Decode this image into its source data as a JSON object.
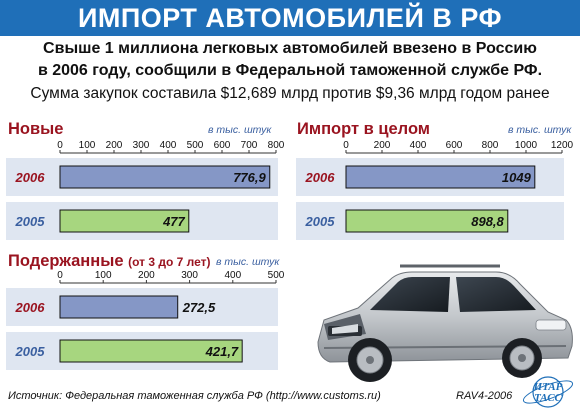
{
  "header": {
    "title": "ИМПОРТ АВТОМОБИЛЕЙ В РФ",
    "subtitle_line1": "Свыше 1 миллиона легковых автомобилей ввезено в Россию",
    "subtitle_line2": "в 2006 году, сообщили в Федеральной таможенной службе РФ.",
    "subtitle_line3": "Сумма закупок составила $12,689 млрд против $9,36 млрд годом ранее"
  },
  "colors": {
    "banner": "#1f6fb8",
    "bar_2006": "#8597c6",
    "bar_2005": "#a7d67f",
    "band": "#dfe6f1",
    "title_red": "#9a1420"
  },
  "chart_data": [
    {
      "type": "bar",
      "title": "Новые",
      "unit": "в тыс. штук",
      "categories": [
        "2006",
        "2005"
      ],
      "values": [
        776.9,
        477
      ],
      "value_labels": [
        "776,9",
        "477"
      ],
      "ticks": [
        0,
        100,
        200,
        300,
        400,
        500,
        600,
        700,
        800
      ],
      "xlim": [
        0,
        800
      ]
    },
    {
      "type": "bar",
      "title": "Импорт в целом",
      "unit": "в тыс. штук",
      "categories": [
        "2006",
        "2005"
      ],
      "values": [
        1049,
        898.8
      ],
      "value_labels": [
        "1049",
        "898,8"
      ],
      "ticks": [
        0,
        200,
        400,
        600,
        800,
        1000,
        1200
      ],
      "xlim": [
        0,
        1200
      ]
    },
    {
      "type": "bar",
      "title": "Подержанные",
      "title_note": "(от 3 до 7 лет)",
      "unit": "в тыс. штук",
      "categories": [
        "2006",
        "2005"
      ],
      "values": [
        272.5,
        421.7
      ],
      "value_labels": [
        "272,5",
        "421,7"
      ],
      "ticks": [
        0,
        100,
        200,
        300,
        400,
        500
      ],
      "xlim": [
        0,
        500
      ]
    }
  ],
  "footer": {
    "source": "Источник:  Федеральная таможенная служба РФ (http://www.customs.ru)",
    "code": "RAV4-2006",
    "logo_line1": "ИТАР",
    "logo_line2": "ТАСС"
  }
}
